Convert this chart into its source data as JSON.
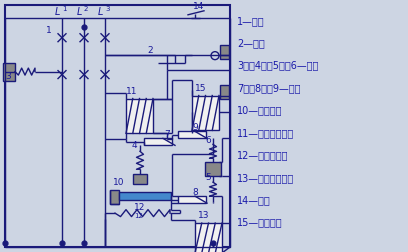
{
  "bg_color": "#cdd5e3",
  "line_color": "#1a1a7a",
  "text_color": "#1a1a9a",
  "label_color": "#1a1aaa",
  "gray_fill": "#888888",
  "blue_fill": "#4488cc",
  "white_fill": "#f0f0f0",
  "legend": [
    "1—触头",
    "2—搃鑉",
    "3、。4、。5、。6—弹簧",
    "7、。8、。9—衬鐵",
    "10—双金属片",
    "11—过流脱扣線圈",
    "12—加热电阵丝",
    "13—失压脱扣線圈",
    "14—按鈕",
    "15—分励線圈"
  ]
}
